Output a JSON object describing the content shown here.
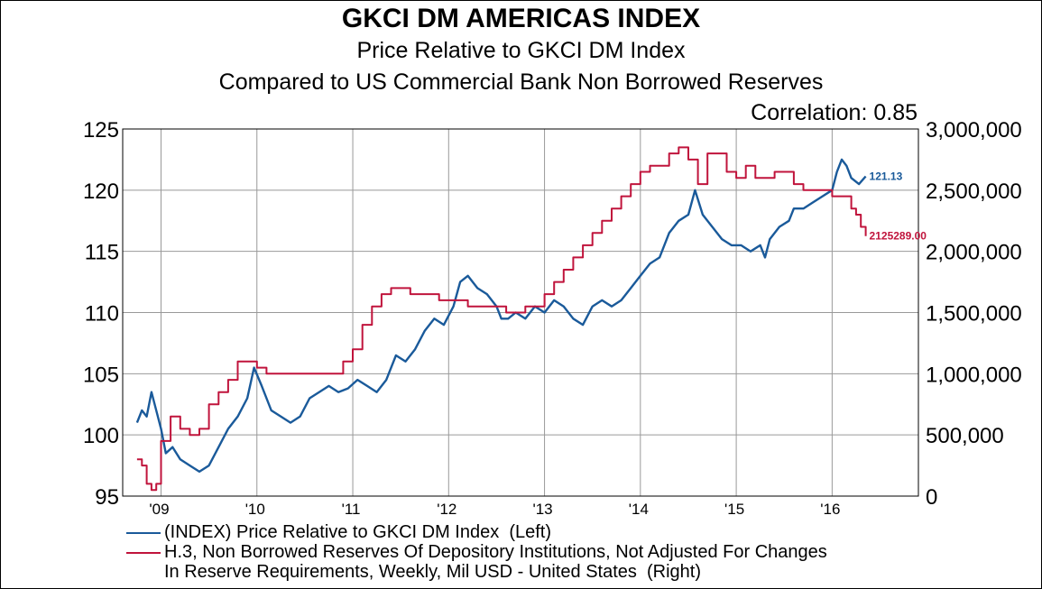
{
  "title": "GKCI DM AMERICAS INDEX",
  "subtitle1": "Price Relative to GKCI DM Index",
  "subtitle2": "Compared to US Commercial Bank Non Borrowed Reserves",
  "correlation": "Correlation: 0.85",
  "colors": {
    "index": "#1a5a9a",
    "reserves": "#c0143c",
    "grid": "#999999",
    "axis": "#000000"
  },
  "legend": [
    {
      "text": "(INDEX) Price Relative to GKCI DM Index  (Left)",
      "color": "#1a5a9a"
    },
    {
      "text": "H.3, Non Borrowed Reserves Of Depository Institutions, Not Adjusted For Changes\nIn Reserve Requirements, Weekly, Mil USD - United States  (Right)",
      "color": "#c0143c"
    }
  ],
  "chart_data": {
    "type": "line",
    "x_range": [
      2008.6,
      2016.9
    ],
    "x_ticks": [
      {
        "label": "'09",
        "value": 2009
      },
      {
        "label": "'10",
        "value": 2010
      },
      {
        "label": "'11",
        "value": 2011
      },
      {
        "label": "'12",
        "value": 2012
      },
      {
        "label": "'13",
        "value": 2013
      },
      {
        "label": "'14",
        "value": 2014
      },
      {
        "label": "'15",
        "value": 2015
      },
      {
        "label": "'16",
        "value": 2016
      }
    ],
    "left_axis": {
      "range": [
        95,
        125
      ],
      "ticks": [
        "95",
        "100",
        "105",
        "110",
        "115",
        "120",
        "125"
      ]
    },
    "right_axis": {
      "range": [
        0,
        3000000
      ],
      "ticks": [
        "0",
        "500,000",
        "1,000,000",
        "1,500,000",
        "2,000,000",
        "2,500,000",
        "3,000,000"
      ]
    },
    "grid": true,
    "legend_position": "bottom",
    "series": [
      {
        "name": "(INDEX) Price Relative to GKCI DM Index  (Left)",
        "axis": "left",
        "end_label": "121.13",
        "points": [
          [
            2008.75,
            101.0
          ],
          [
            2008.8,
            102.0
          ],
          [
            2008.85,
            101.5
          ],
          [
            2008.9,
            103.5
          ],
          [
            2008.95,
            102.0
          ],
          [
            2009.0,
            100.5
          ],
          [
            2009.05,
            98.5
          ],
          [
            2009.12,
            99.0
          ],
          [
            2009.2,
            98.0
          ],
          [
            2009.3,
            97.5
          ],
          [
            2009.4,
            97.0
          ],
          [
            2009.5,
            97.5
          ],
          [
            2009.6,
            99.0
          ],
          [
            2009.7,
            100.5
          ],
          [
            2009.8,
            101.5
          ],
          [
            2009.9,
            103.0
          ],
          [
            2009.97,
            105.5
          ],
          [
            2010.05,
            104.0
          ],
          [
            2010.15,
            102.0
          ],
          [
            2010.25,
            101.5
          ],
          [
            2010.35,
            101.0
          ],
          [
            2010.45,
            101.5
          ],
          [
            2010.55,
            103.0
          ],
          [
            2010.65,
            103.5
          ],
          [
            2010.75,
            104.0
          ],
          [
            2010.85,
            103.5
          ],
          [
            2010.95,
            103.8
          ],
          [
            2011.05,
            104.5
          ],
          [
            2011.15,
            104.0
          ],
          [
            2011.25,
            103.5
          ],
          [
            2011.35,
            104.5
          ],
          [
            2011.45,
            106.5
          ],
          [
            2011.55,
            106.0
          ],
          [
            2011.65,
            107.0
          ],
          [
            2011.75,
            108.5
          ],
          [
            2011.85,
            109.5
          ],
          [
            2011.95,
            109.0
          ],
          [
            2012.05,
            110.5
          ],
          [
            2012.12,
            112.5
          ],
          [
            2012.2,
            113.0
          ],
          [
            2012.3,
            112.0
          ],
          [
            2012.4,
            111.5
          ],
          [
            2012.5,
            110.5
          ],
          [
            2012.55,
            109.5
          ],
          [
            2012.62,
            109.5
          ],
          [
            2012.7,
            110.0
          ],
          [
            2012.8,
            109.5
          ],
          [
            2012.9,
            110.5
          ],
          [
            2013.0,
            110.0
          ],
          [
            2013.1,
            111.0
          ],
          [
            2013.2,
            110.5
          ],
          [
            2013.3,
            109.5
          ],
          [
            2013.4,
            109.0
          ],
          [
            2013.5,
            110.5
          ],
          [
            2013.6,
            111.0
          ],
          [
            2013.7,
            110.5
          ],
          [
            2013.8,
            111.0
          ],
          [
            2013.9,
            112.0
          ],
          [
            2014.0,
            113.0
          ],
          [
            2014.1,
            114.0
          ],
          [
            2014.2,
            114.5
          ],
          [
            2014.3,
            116.5
          ],
          [
            2014.4,
            117.5
          ],
          [
            2014.5,
            118.0
          ],
          [
            2014.57,
            120.0
          ],
          [
            2014.65,
            118.0
          ],
          [
            2014.75,
            117.0
          ],
          [
            2014.85,
            116.0
          ],
          [
            2014.95,
            115.5
          ],
          [
            2015.05,
            115.5
          ],
          [
            2015.15,
            115.0
          ],
          [
            2015.25,
            115.5
          ],
          [
            2015.3,
            114.5
          ],
          [
            2015.35,
            116.0
          ],
          [
            2015.45,
            117.0
          ],
          [
            2015.55,
            117.5
          ],
          [
            2015.6,
            118.5
          ],
          [
            2015.7,
            118.5
          ],
          [
            2015.8,
            119.0
          ],
          [
            2015.9,
            119.5
          ],
          [
            2016.0,
            120.0
          ],
          [
            2016.05,
            121.5
          ],
          [
            2016.1,
            122.5
          ],
          [
            2016.15,
            122.0
          ],
          [
            2016.2,
            121.0
          ],
          [
            2016.28,
            120.5
          ],
          [
            2016.35,
            121.13
          ]
        ]
      },
      {
        "name": "H.3, Non Borrowed Reserves Of Depository Institutions, Not Adjusted For Changes In Reserve Requirements, Weekly, Mil USD - United States  (Right)",
        "axis": "right",
        "end_label": "2125289.00",
        "points": [
          [
            2008.75,
            300000
          ],
          [
            2008.8,
            250000
          ],
          [
            2008.85,
            100000
          ],
          [
            2008.9,
            50000
          ],
          [
            2008.95,
            100000
          ],
          [
            2009.0,
            450000
          ],
          [
            2009.1,
            650000
          ],
          [
            2009.2,
            550000
          ],
          [
            2009.3,
            500000
          ],
          [
            2009.4,
            550000
          ],
          [
            2009.5,
            750000
          ],
          [
            2009.6,
            850000
          ],
          [
            2009.7,
            950000
          ],
          [
            2009.8,
            1100000
          ],
          [
            2009.9,
            1100000
          ],
          [
            2010.0,
            1050000
          ],
          [
            2010.1,
            1000000
          ],
          [
            2010.2,
            1000000
          ],
          [
            2010.3,
            1000000
          ],
          [
            2010.4,
            1000000
          ],
          [
            2010.5,
            1000000
          ],
          [
            2010.6,
            1000000
          ],
          [
            2010.7,
            1000000
          ],
          [
            2010.8,
            1000000
          ],
          [
            2010.9,
            1100000
          ],
          [
            2011.0,
            1200000
          ],
          [
            2011.1,
            1400000
          ],
          [
            2011.2,
            1550000
          ],
          [
            2011.3,
            1650000
          ],
          [
            2011.4,
            1700000
          ],
          [
            2011.5,
            1700000
          ],
          [
            2011.6,
            1650000
          ],
          [
            2011.7,
            1650000
          ],
          [
            2011.8,
            1650000
          ],
          [
            2011.9,
            1600000
          ],
          [
            2012.0,
            1600000
          ],
          [
            2012.2,
            1550000
          ],
          [
            2012.4,
            1550000
          ],
          [
            2012.6,
            1500000
          ],
          [
            2012.8,
            1550000
          ],
          [
            2013.0,
            1650000
          ],
          [
            2013.1,
            1750000
          ],
          [
            2013.2,
            1850000
          ],
          [
            2013.3,
            1950000
          ],
          [
            2013.4,
            2050000
          ],
          [
            2013.5,
            2150000
          ],
          [
            2013.6,
            2250000
          ],
          [
            2013.7,
            2350000
          ],
          [
            2013.8,
            2450000
          ],
          [
            2013.9,
            2550000
          ],
          [
            2014.0,
            2650000
          ],
          [
            2014.1,
            2700000
          ],
          [
            2014.2,
            2700000
          ],
          [
            2014.3,
            2800000
          ],
          [
            2014.4,
            2850000
          ],
          [
            2014.5,
            2750000
          ],
          [
            2014.6,
            2550000
          ],
          [
            2014.7,
            2800000
          ],
          [
            2014.8,
            2800000
          ],
          [
            2014.9,
            2650000
          ],
          [
            2015.0,
            2600000
          ],
          [
            2015.1,
            2700000
          ],
          [
            2015.2,
            2600000
          ],
          [
            2015.3,
            2600000
          ],
          [
            2015.4,
            2650000
          ],
          [
            2015.5,
            2650000
          ],
          [
            2015.6,
            2550000
          ],
          [
            2015.7,
            2500000
          ],
          [
            2015.8,
            2500000
          ],
          [
            2015.9,
            2500000
          ],
          [
            2016.0,
            2450000
          ],
          [
            2016.1,
            2450000
          ],
          [
            2016.2,
            2350000
          ],
          [
            2016.25,
            2300000
          ],
          [
            2016.3,
            2200000
          ],
          [
            2016.35,
            2125289
          ]
        ]
      }
    ]
  }
}
